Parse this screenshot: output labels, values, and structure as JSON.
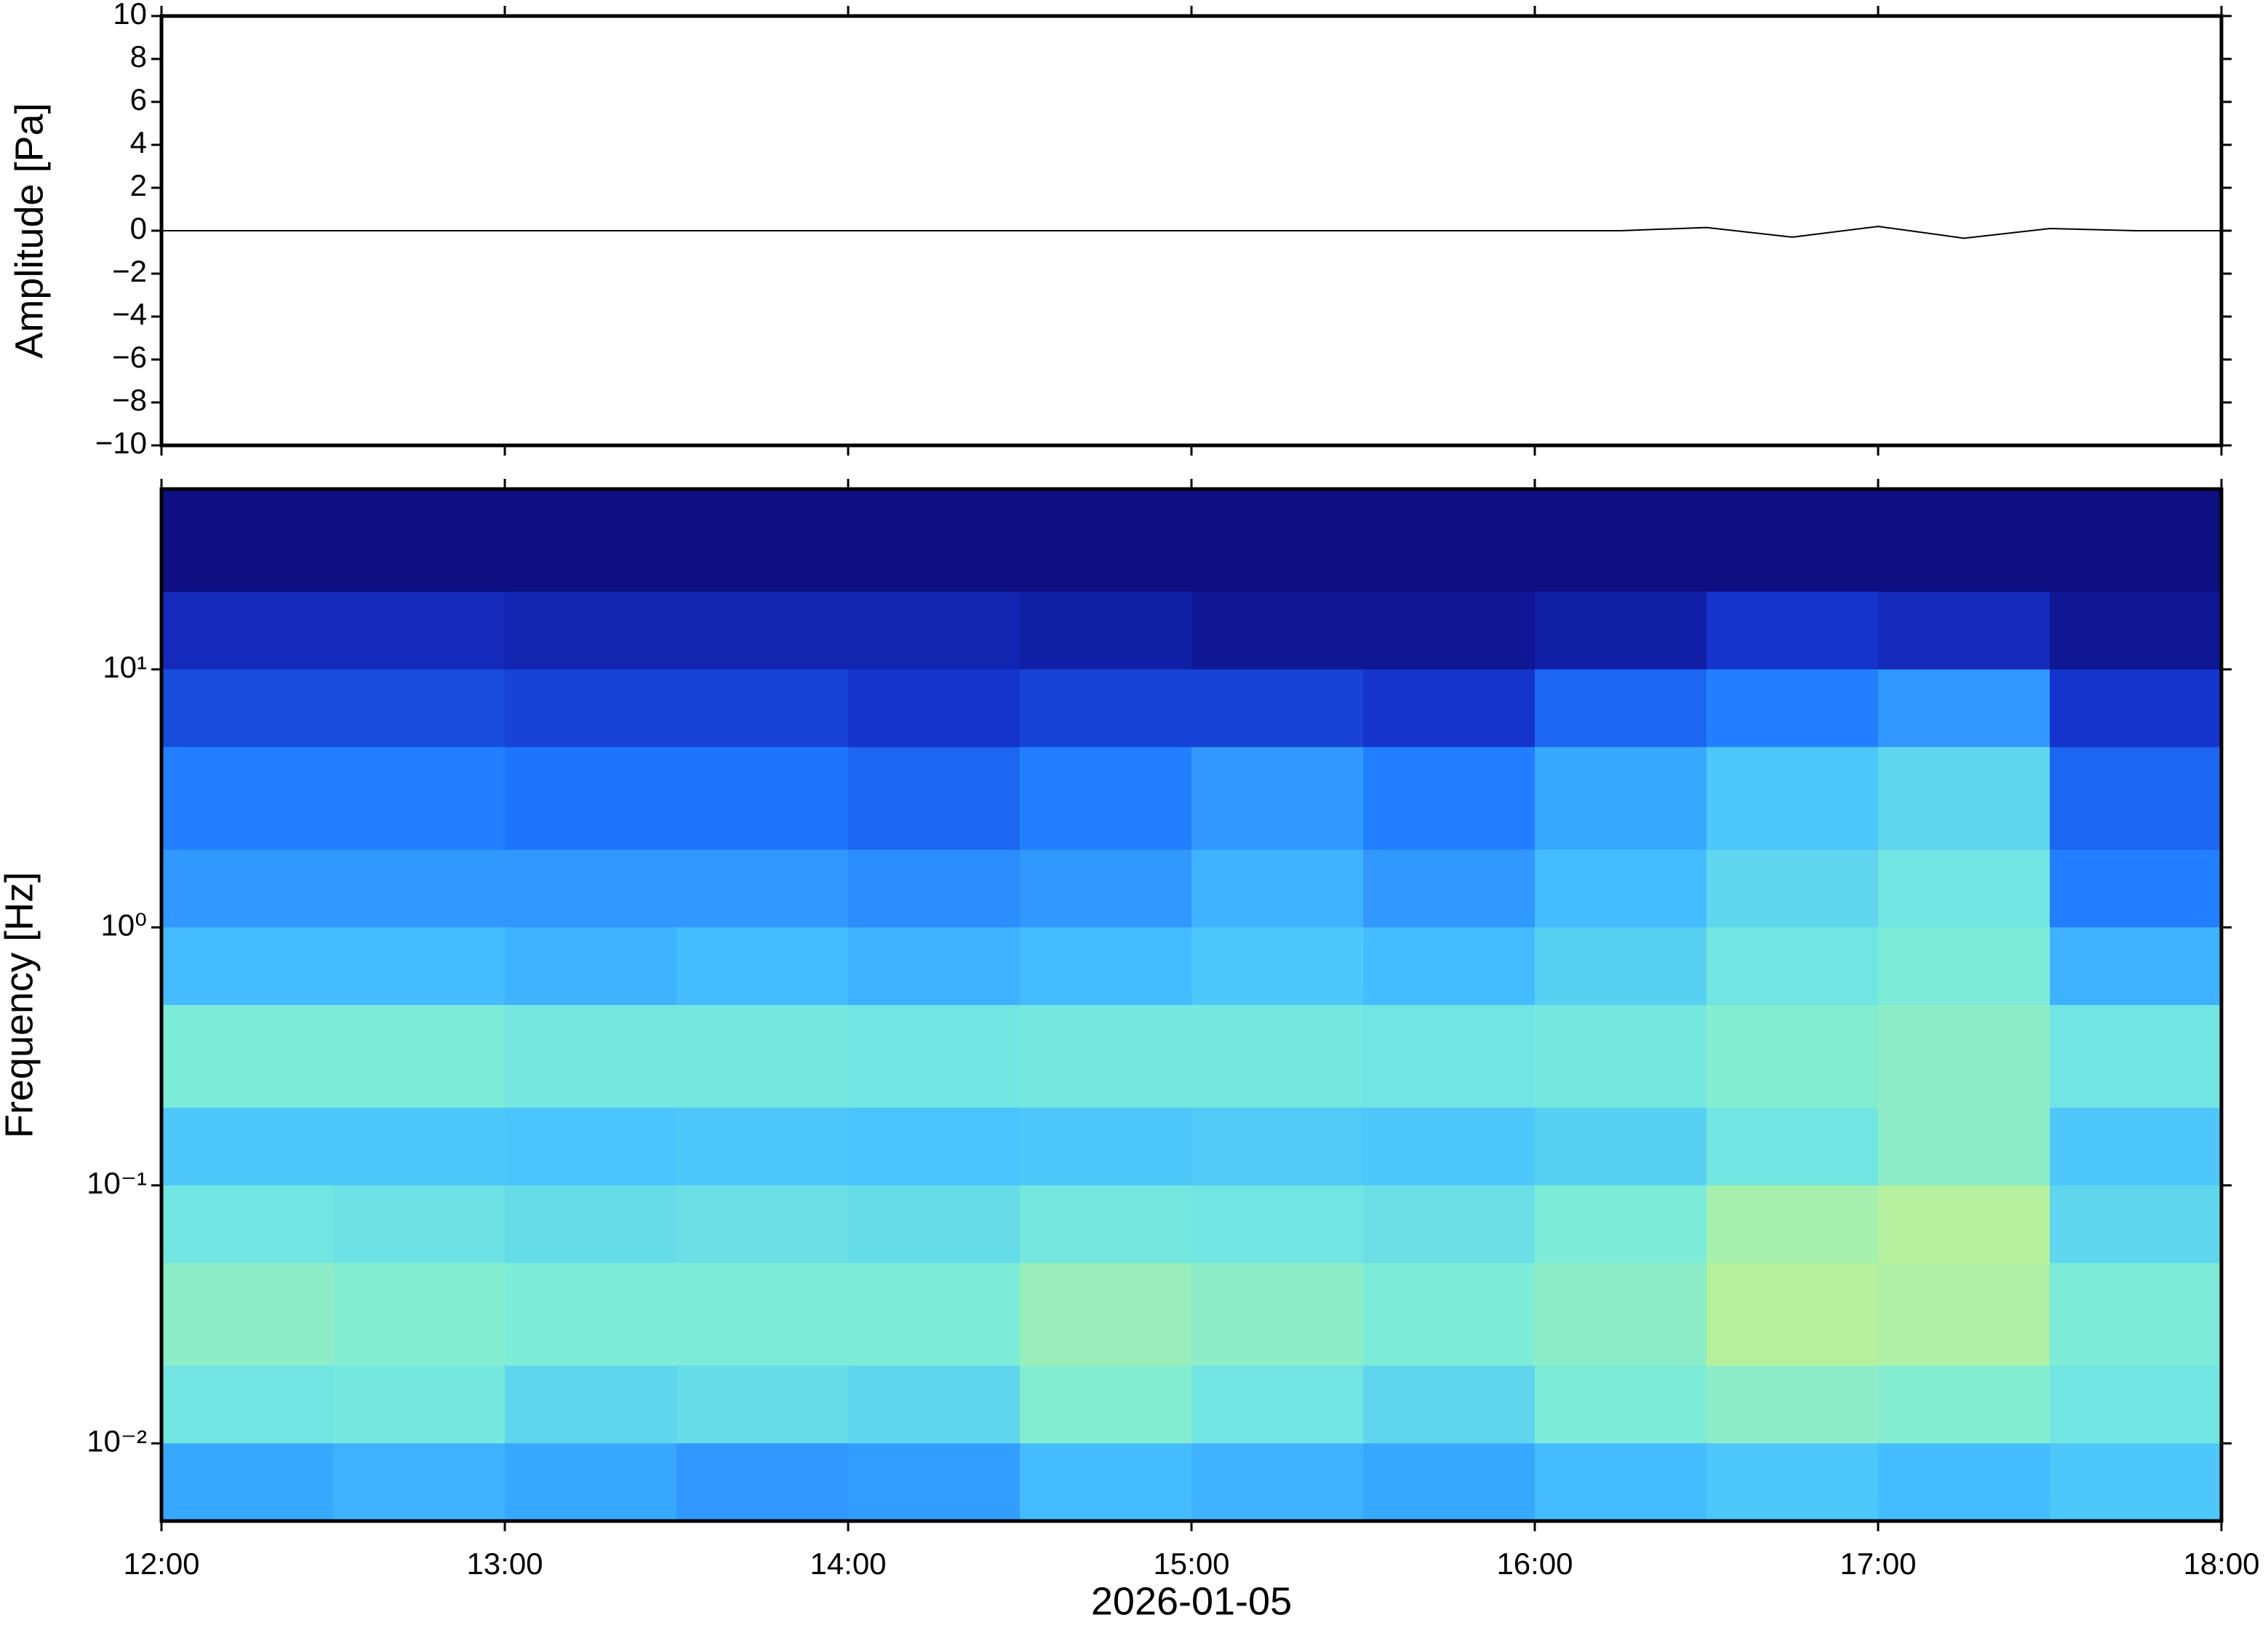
{
  "chart_data": [
    {
      "type": "line",
      "ylabel": "Amplitude [Pa]",
      "xlim": [
        "2026-01-05T12:00",
        "2026-01-05T18:00"
      ],
      "xticks": [
        "2026-01-05T12:00",
        "2026-01-05T13:00",
        "2026-01-05T14:00",
        "2026-01-05T15:00",
        "2026-01-05T16:00",
        "2026-01-05T17:00",
        "2026-01-05T18:00"
      ],
      "ylim": [
        -10,
        10
      ],
      "yticks": [
        {
          "value": -10,
          "label": "−10"
        },
        {
          "value": -8,
          "label": "−8"
        },
        {
          "value": -6,
          "label": "−6"
        },
        {
          "value": -4,
          "label": "−4"
        },
        {
          "value": -2,
          "label": "−2"
        },
        0,
        2,
        4,
        6,
        8,
        10
      ],
      "series": [
        {
          "color": "#000000",
          "x": [
            "2026-01-05T12:00",
            "2026-01-05T12:15",
            "2026-01-05T12:30",
            "2026-01-05T12:45",
            "2026-01-05T13:00",
            "2026-01-05T13:15",
            "2026-01-05T13:30",
            "2026-01-05T13:45",
            "2026-01-05T14:00",
            "2026-01-05T14:15",
            "2026-01-05T14:30",
            "2026-01-05T14:45",
            "2026-01-05T15:00",
            "2026-01-05T15:15",
            "2026-01-05T15:30",
            "2026-01-05T15:45",
            "2026-01-05T16:00",
            "2026-01-05T16:15",
            "2026-01-05T16:30",
            "2026-01-05T16:45",
            "2026-01-05T17:00",
            "2026-01-05T17:15",
            "2026-01-05T17:30",
            "2026-01-05T17:45",
            "2026-01-05T18:00"
          ],
          "values": [
            0,
            0,
            0,
            0,
            0,
            0,
            0,
            0,
            0,
            0,
            0,
            0,
            0,
            0,
            0,
            0,
            0,
            0,
            0.15,
            -0.3,
            0.2,
            -0.35,
            0.1,
            0,
            0
          ]
        }
      ]
    },
    {
      "type": "heatmap",
      "ylabel": "Frequency [Hz]",
      "xlabel": "2026-01-05",
      "ylog": true,
      "xlim": [
        "2026-01-05T12:00",
        "2026-01-05T18:00"
      ],
      "xticks": [
        {
          "value": "2026-01-05T12:00",
          "label": "12:00"
        },
        {
          "value": "2026-01-05T13:00",
          "label": "13:00"
        },
        {
          "value": "2026-01-05T14:00",
          "label": "14:00"
        },
        {
          "value": "2026-01-05T15:00",
          "label": "15:00"
        },
        {
          "value": "2026-01-05T16:00",
          "label": "16:00"
        },
        {
          "value": "2026-01-05T17:00",
          "label": "17:00"
        },
        {
          "value": "2026-01-05T18:00",
          "label": "18:00"
        }
      ],
      "ylim": [
        0.005,
        50
      ],
      "yticks": [
        {
          "value": 0.01,
          "label": "10⁻²"
        },
        {
          "value": 0.1,
          "label": "10⁻¹"
        },
        {
          "value": 1,
          "label": "10⁰"
        },
        {
          "value": 10,
          "label": "10¹"
        }
      ],
      "xbins": [
        "2026-01-05T12:00",
        "2026-01-05T12:30",
        "2026-01-05T13:00",
        "2026-01-05T13:30",
        "2026-01-05T14:00",
        "2026-01-05T14:30",
        "2026-01-05T15:00",
        "2026-01-05T15:30",
        "2026-01-05T16:00",
        "2026-01-05T16:30",
        "2026-01-05T17:00",
        "2026-01-05T17:30",
        "2026-01-05T18:00"
      ],
      "ybins": [
        50,
        20,
        10,
        5,
        2,
        1,
        0.5,
        0.2,
        0.1,
        0.05,
        0.02,
        0.01,
        0.005
      ],
      "zlim": [
        0,
        1
      ],
      "colormap": [
        "#0c0a78",
        "#1430c8",
        "#1e78ff",
        "#46c0ff",
        "#78ecdc",
        "#b4f0a0",
        "#f0f08c",
        "#ffc850"
      ],
      "z": [
        [
          0.02,
          0.02,
          0.02,
          0.02,
          0.02,
          0.02,
          0.02,
          0.02,
          0.02,
          0.02,
          0.02,
          0.02
        ],
        [
          0.12,
          0.12,
          0.1,
          0.1,
          0.1,
          0.08,
          0.05,
          0.05,
          0.08,
          0.15,
          0.12,
          0.05
        ],
        [
          0.2,
          0.2,
          0.18,
          0.18,
          0.15,
          0.18,
          0.18,
          0.15,
          0.25,
          0.3,
          0.35,
          0.15
        ],
        [
          0.3,
          0.3,
          0.28,
          0.28,
          0.25,
          0.3,
          0.35,
          0.3,
          0.38,
          0.45,
          0.5,
          0.25
        ],
        [
          0.35,
          0.35,
          0.35,
          0.35,
          0.33,
          0.35,
          0.4,
          0.35,
          0.42,
          0.5,
          0.55,
          0.3
        ],
        [
          0.42,
          0.42,
          0.4,
          0.42,
          0.4,
          0.42,
          0.45,
          0.42,
          0.48,
          0.55,
          0.58,
          0.4
        ],
        [
          0.58,
          0.58,
          0.56,
          0.56,
          0.55,
          0.56,
          0.56,
          0.55,
          0.56,
          0.6,
          0.62,
          0.55
        ],
        [
          0.45,
          0.45,
          0.44,
          0.45,
          0.44,
          0.45,
          0.46,
          0.45,
          0.48,
          0.55,
          0.62,
          0.45
        ],
        [
          0.55,
          0.54,
          0.52,
          0.53,
          0.52,
          0.56,
          0.55,
          0.53,
          0.58,
          0.68,
          0.72,
          0.5
        ],
        [
          0.62,
          0.6,
          0.58,
          0.58,
          0.58,
          0.65,
          0.62,
          0.58,
          0.62,
          0.72,
          0.7,
          0.58
        ],
        [
          0.55,
          0.56,
          0.5,
          0.52,
          0.5,
          0.6,
          0.55,
          0.5,
          0.58,
          0.62,
          0.6,
          0.55
        ],
        [
          0.38,
          0.4,
          0.38,
          0.35,
          0.36,
          0.42,
          0.4,
          0.38,
          0.42,
          0.45,
          0.42,
          0.45
        ]
      ]
    }
  ]
}
